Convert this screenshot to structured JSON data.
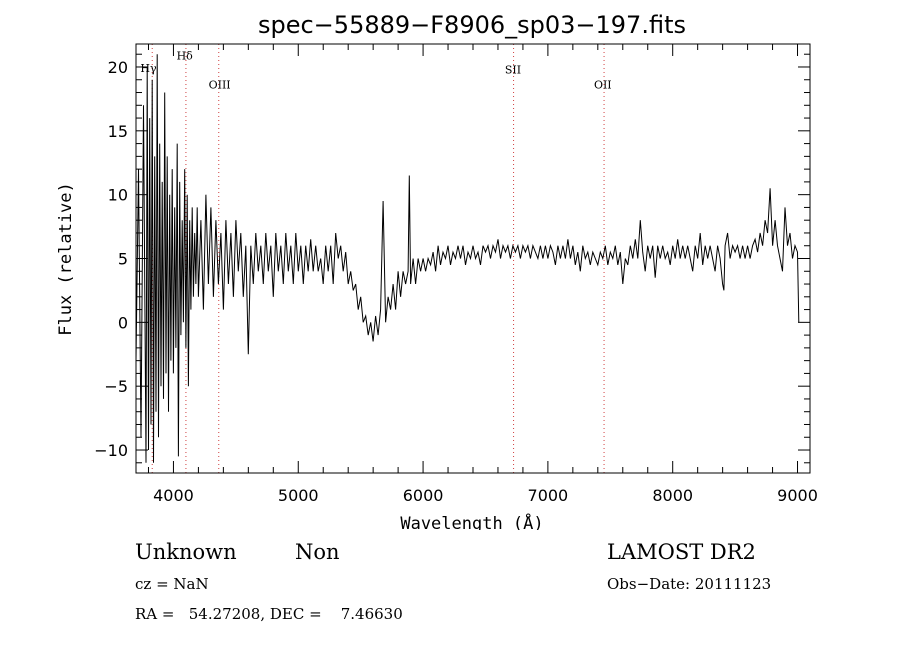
{
  "chart_data": {
    "type": "line",
    "title": "spec−55889−F8906_sp03−197.fits",
    "xlabel": "Wavelength (Å)",
    "ylabel": "Flux (relative)",
    "xlim": [
      3700,
      9100
    ],
    "ylim": [
      -11.8,
      21.8
    ],
    "x_ticks": [
      4000,
      5000,
      6000,
      7000,
      8000,
      9000
    ],
    "y_ticks": [
      -10,
      -5,
      0,
      5,
      10,
      15,
      20
    ],
    "grid": false,
    "line_color": "#000000",
    "marker_color": "#d04040",
    "series": [
      {
        "points": [
          [
            3700,
            -3
          ],
          [
            3720,
            12
          ],
          [
            3740,
            -9
          ],
          [
            3760,
            17
          ],
          [
            3780,
            -11
          ],
          [
            3790,
            20
          ],
          [
            3800,
            -10
          ],
          [
            3810,
            16
          ],
          [
            3820,
            -8
          ],
          [
            3830,
            19
          ],
          [
            3840,
            -11
          ],
          [
            3850,
            13
          ],
          [
            3860,
            -7
          ],
          [
            3870,
            21
          ],
          [
            3880,
            -9
          ],
          [
            3890,
            14
          ],
          [
            3900,
            -5
          ],
          [
            3910,
            11
          ],
          [
            3920,
            -6
          ],
          [
            3930,
            18
          ],
          [
            3940,
            -4
          ],
          [
            3950,
            13
          ],
          [
            3960,
            -7
          ],
          [
            3970,
            10
          ],
          [
            3980,
            -3
          ],
          [
            3990,
            12
          ],
          [
            4000,
            -4
          ],
          [
            4010,
            9
          ],
          [
            4020,
            -2
          ],
          [
            4030,
            14
          ],
          [
            4040,
            -10.5
          ],
          [
            4050,
            11
          ],
          [
            4060,
            -1
          ],
          [
            4070,
            8
          ],
          [
            4080,
            0
          ],
          [
            4090,
            12
          ],
          [
            4100,
            -2
          ],
          [
            4110,
            10
          ],
          [
            4120,
            -5
          ],
          [
            4130,
            8
          ],
          [
            4140,
            1
          ],
          [
            4150,
            9
          ],
          [
            4160,
            2
          ],
          [
            4170,
            7
          ],
          [
            4180,
            3
          ],
          [
            4190,
            9
          ],
          [
            4200,
            2
          ],
          [
            4220,
            8
          ],
          [
            4240,
            1
          ],
          [
            4260,
            10
          ],
          [
            4280,
            3
          ],
          [
            4300,
            9
          ],
          [
            4320,
            2
          ],
          [
            4340,
            8
          ],
          [
            4360,
            3
          ],
          [
            4380,
            7
          ],
          [
            4400,
            1
          ],
          [
            4420,
            8
          ],
          [
            4440,
            3
          ],
          [
            4460,
            7
          ],
          [
            4480,
            2
          ],
          [
            4500,
            8
          ],
          [
            4520,
            4
          ],
          [
            4540,
            7
          ],
          [
            4560,
            2
          ],
          [
            4580,
            6
          ],
          [
            4600,
            -2.5
          ],
          [
            4620,
            6
          ],
          [
            4640,
            3
          ],
          [
            4660,
            7
          ],
          [
            4680,
            4
          ],
          [
            4700,
            6
          ],
          [
            4720,
            3
          ],
          [
            4740,
            7
          ],
          [
            4760,
            4
          ],
          [
            4780,
            6
          ],
          [
            4800,
            2
          ],
          [
            4820,
            7
          ],
          [
            4840,
            4
          ],
          [
            4860,
            6
          ],
          [
            4880,
            3
          ],
          [
            4900,
            7
          ],
          [
            4920,
            4
          ],
          [
            4940,
            6
          ],
          [
            4960,
            3
          ],
          [
            4980,
            7
          ],
          [
            5000,
            4
          ],
          [
            5020,
            6
          ],
          [
            5040,
            3
          ],
          [
            5060,
            6
          ],
          [
            5080,
            4
          ],
          [
            5100,
            6.5
          ],
          [
            5120,
            4
          ],
          [
            5140,
            6
          ],
          [
            5160,
            4
          ],
          [
            5180,
            5
          ],
          [
            5200,
            3
          ],
          [
            5220,
            6
          ],
          [
            5240,
            4
          ],
          [
            5260,
            6
          ],
          [
            5280,
            3
          ],
          [
            5300,
            7
          ],
          [
            5320,
            5
          ],
          [
            5340,
            6
          ],
          [
            5360,
            4
          ],
          [
            5380,
            5.5
          ],
          [
            5400,
            3
          ],
          [
            5420,
            4
          ],
          [
            5440,
            2.5
          ],
          [
            5460,
            3
          ],
          [
            5480,
            1
          ],
          [
            5500,
            2
          ],
          [
            5520,
            0
          ],
          [
            5540,
            0.5
          ],
          [
            5560,
            -1
          ],
          [
            5580,
            0
          ],
          [
            5600,
            -1.5
          ],
          [
            5620,
            0.5
          ],
          [
            5640,
            -1
          ],
          [
            5660,
            1
          ],
          [
            5680,
            9.5
          ],
          [
            5700,
            0
          ],
          [
            5720,
            2
          ],
          [
            5740,
            1
          ],
          [
            5760,
            3
          ],
          [
            5780,
            1
          ],
          [
            5800,
            4
          ],
          [
            5820,
            2
          ],
          [
            5840,
            4
          ],
          [
            5860,
            3
          ],
          [
            5880,
            4
          ],
          [
            5890,
            11.5
          ],
          [
            5900,
            3
          ],
          [
            5920,
            5
          ],
          [
            5940,
            3
          ],
          [
            5960,
            5
          ],
          [
            5980,
            4
          ],
          [
            6000,
            5
          ],
          [
            6020,
            4
          ],
          [
            6040,
            5
          ],
          [
            6060,
            4.5
          ],
          [
            6080,
            5.5
          ],
          [
            6100,
            4
          ],
          [
            6120,
            6
          ],
          [
            6140,
            4.5
          ],
          [
            6160,
            5.5
          ],
          [
            6180,
            5
          ],
          [
            6200,
            6
          ],
          [
            6220,
            4.5
          ],
          [
            6240,
            5.5
          ],
          [
            6260,
            5
          ],
          [
            6280,
            6
          ],
          [
            6300,
            5
          ],
          [
            6320,
            6
          ],
          [
            6340,
            4.5
          ],
          [
            6360,
            5.5
          ],
          [
            6380,
            5
          ],
          [
            6400,
            6
          ],
          [
            6420,
            5
          ],
          [
            6440,
            5.5
          ],
          [
            6460,
            4.5
          ],
          [
            6480,
            6
          ],
          [
            6500,
            5.5
          ],
          [
            6520,
            6
          ],
          [
            6540,
            5
          ],
          [
            6560,
            6
          ],
          [
            6580,
            5.5
          ],
          [
            6600,
            6.5
          ],
          [
            6620,
            5
          ],
          [
            6640,
            6
          ],
          [
            6660,
            5.5
          ],
          [
            6680,
            6
          ],
          [
            6700,
            5
          ],
          [
            6720,
            6
          ],
          [
            6740,
            5.5
          ],
          [
            6760,
            6
          ],
          [
            6780,
            5
          ],
          [
            6800,
            6
          ],
          [
            6820,
            5.5
          ],
          [
            6840,
            6
          ],
          [
            6860,
            5
          ],
          [
            6880,
            6
          ],
          [
            6900,
            5.5
          ],
          [
            6920,
            5
          ],
          [
            6940,
            6
          ],
          [
            6960,
            5
          ],
          [
            6980,
            6
          ],
          [
            7000,
            5
          ],
          [
            7020,
            6
          ],
          [
            7040,
            5.5
          ],
          [
            7060,
            4.5
          ],
          [
            7080,
            6
          ],
          [
            7100,
            5
          ],
          [
            7120,
            6
          ],
          [
            7140,
            5
          ],
          [
            7160,
            6.5
          ],
          [
            7180,
            5
          ],
          [
            7200,
            6
          ],
          [
            7220,
            4.5
          ],
          [
            7240,
            5.5
          ],
          [
            7260,
            4
          ],
          [
            7280,
            6
          ],
          [
            7300,
            5
          ],
          [
            7320,
            5.5
          ],
          [
            7340,
            4.5
          ],
          [
            7360,
            5.5
          ],
          [
            7380,
            5
          ],
          [
            7400,
            4.5
          ],
          [
            7420,
            5.5
          ],
          [
            7440,
            5
          ],
          [
            7460,
            6
          ],
          [
            7480,
            4.5
          ],
          [
            7500,
            5.5
          ],
          [
            7520,
            5
          ],
          [
            7540,
            6
          ],
          [
            7560,
            4.5
          ],
          [
            7580,
            5.5
          ],
          [
            7600,
            3
          ],
          [
            7620,
            5
          ],
          [
            7640,
            4.5
          ],
          [
            7660,
            6
          ],
          [
            7680,
            5
          ],
          [
            7700,
            6.5
          ],
          [
            7720,
            5
          ],
          [
            7740,
            8
          ],
          [
            7760,
            5.5
          ],
          [
            7780,
            4
          ],
          [
            7800,
            6
          ],
          [
            7820,
            5
          ],
          [
            7840,
            6
          ],
          [
            7860,
            3.5
          ],
          [
            7880,
            6
          ],
          [
            7900,
            5
          ],
          [
            7920,
            6
          ],
          [
            7940,
            5
          ],
          [
            7960,
            5.5
          ],
          [
            7980,
            4.5
          ],
          [
            8000,
            6
          ],
          [
            8020,
            5
          ],
          [
            8040,
            6.5
          ],
          [
            8060,
            5
          ],
          [
            8080,
            6
          ],
          [
            8100,
            5
          ],
          [
            8120,
            6
          ],
          [
            8140,
            5
          ],
          [
            8160,
            4
          ],
          [
            8180,
            6
          ],
          [
            8200,
            5
          ],
          [
            8220,
            7
          ],
          [
            8240,
            4.5
          ],
          [
            8260,
            6
          ],
          [
            8280,
            5
          ],
          [
            8300,
            6
          ],
          [
            8320,
            5
          ],
          [
            8340,
            4
          ],
          [
            8360,
            6
          ],
          [
            8380,
            5
          ],
          [
            8400,
            3
          ],
          [
            8410,
            2.5
          ],
          [
            8420,
            6
          ],
          [
            8440,
            7
          ],
          [
            8460,
            5
          ],
          [
            8480,
            6
          ],
          [
            8500,
            5.5
          ],
          [
            8520,
            6
          ],
          [
            8540,
            5
          ],
          [
            8560,
            6
          ],
          [
            8580,
            5
          ],
          [
            8600,
            6
          ],
          [
            8620,
            5
          ],
          [
            8640,
            6
          ],
          [
            8660,
            6.5
          ],
          [
            8680,
            5.5
          ],
          [
            8700,
            7
          ],
          [
            8720,
            6
          ],
          [
            8740,
            8
          ],
          [
            8760,
            7
          ],
          [
            8780,
            10.5
          ],
          [
            8800,
            6
          ],
          [
            8820,
            8
          ],
          [
            8840,
            6
          ],
          [
            8860,
            5
          ],
          [
            8880,
            4
          ],
          [
            8900,
            9
          ],
          [
            8920,
            6
          ],
          [
            8940,
            7
          ],
          [
            8960,
            5
          ],
          [
            8980,
            6
          ],
          [
            9000,
            5.5
          ],
          [
            9010,
            0
          ]
        ]
      }
    ],
    "annotations": [
      {
        "label": "Hγ",
        "x": 3800,
        "y": 19.6
      },
      {
        "label": "Hδ",
        "x": 4090,
        "y": 20.6
      },
      {
        "label": "OIII",
        "x": 4370,
        "y": 18.3
      },
      {
        "label": "SII",
        "x": 6720,
        "y": 19.5
      },
      {
        "label": "OII",
        "x": 7440,
        "y": 18.3
      }
    ],
    "marker_lines_x": [
      3830,
      4100,
      4363,
      6725,
      7450
    ]
  },
  "info": {
    "class": "Unknown",
    "subclass": "Non",
    "survey": "LAMOST DR2",
    "cz": "cz = NaN",
    "obs_date": "Obs−Date: 20111123",
    "coords": "RA =   54.27208, DEC =    7.46630"
  }
}
